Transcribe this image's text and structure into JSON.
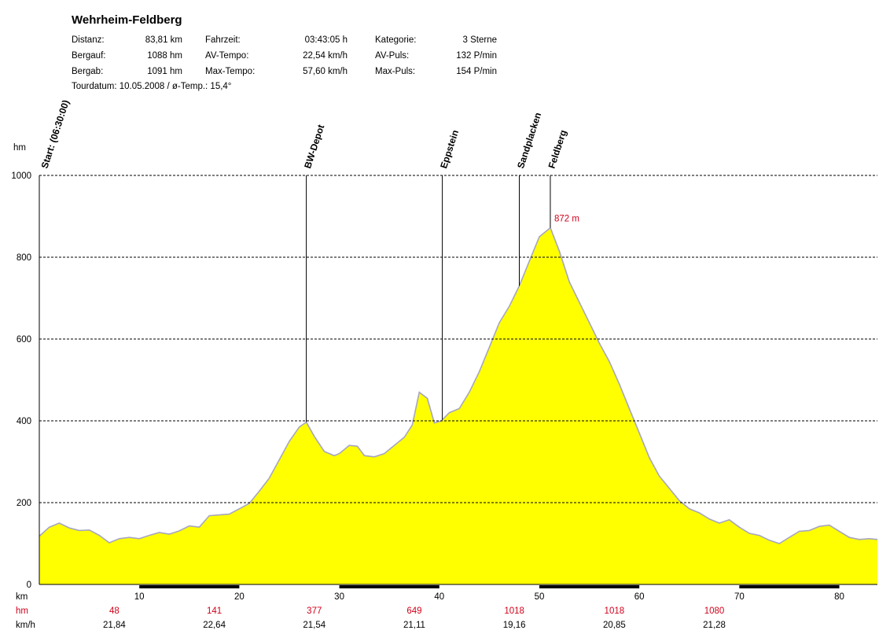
{
  "title": "Wehrheim-Feldberg",
  "stats": {
    "distanz_label": "Distanz:",
    "distanz_value": "83,81 km",
    "bergauf_label": "Bergauf:",
    "bergauf_value": "1088 hm",
    "bergab_label": "Bergab:",
    "bergab_value": "1091 hm",
    "fahrzeit_label": "Fahrzeit:",
    "fahrzeit_value": "03:43:05 h",
    "avtempo_label": "AV-Tempo:",
    "avtempo_value": "22,54 km/h",
    "maxtempo_label": "Max-Tempo:",
    "maxtempo_value": "57,60 km/h",
    "kategorie_label": "Kategorie:",
    "kategorie_value": "3 Sterne",
    "avpuls_label": "AV-Puls:",
    "avpuls_value": "132 P/min",
    "maxpuls_label": "Max-Puls:",
    "maxpuls_value": "154 P/min"
  },
  "tour_line": "Tourdatum: 10.05.2008  /  ø-Temp.: 15,4°",
  "chart_data": {
    "type": "area",
    "ylabel": "hm",
    "xlabel": "km",
    "xlim": [
      0,
      83.81
    ],
    "ylim": [
      0,
      1000
    ],
    "y_ticks": [
      "0",
      "200",
      "400",
      "600",
      "800",
      "1000"
    ],
    "x_ticks": [
      "10",
      "20",
      "30",
      "40",
      "50",
      "60",
      "70",
      "80"
    ],
    "grid": "horizontal dashed",
    "fill_color": "#ffff00",
    "outline_color": "#a6a6c0",
    "accent_color": "#d0021b",
    "x": [
      0,
      1,
      2,
      3,
      4,
      5,
      6,
      7,
      8,
      9,
      10,
      11,
      12,
      13,
      14,
      15,
      16,
      17,
      18,
      19,
      20,
      21,
      22,
      23,
      24,
      25,
      26,
      26.7,
      27.5,
      28.5,
      29.5,
      30,
      31,
      31.8,
      32.5,
      33.5,
      34.5,
      35.5,
      36.5,
      37.3,
      38,
      38.8,
      39.5,
      40.2,
      41,
      42,
      43,
      44,
      45,
      46,
      47,
      48,
      49,
      50,
      51.1,
      52,
      53,
      54,
      55,
      56,
      57,
      58,
      59,
      60,
      61,
      62,
      63,
      64,
      65,
      66,
      67,
      68,
      69,
      70,
      71,
      72,
      73,
      74,
      75,
      76,
      77,
      78,
      79,
      80,
      81,
      82,
      83,
      83.81
    ],
    "y": [
      118,
      140,
      150,
      138,
      132,
      133,
      120,
      102,
      112,
      115,
      112,
      120,
      127,
      123,
      131,
      143,
      140,
      168,
      170,
      172,
      185,
      198,
      228,
      260,
      305,
      350,
      385,
      397,
      362,
      325,
      315,
      320,
      340,
      338,
      315,
      312,
      320,
      340,
      360,
      390,
      470,
      455,
      395,
      400,
      420,
      430,
      470,
      520,
      580,
      640,
      680,
      730,
      790,
      850,
      872,
      815,
      740,
      690,
      640,
      590,
      545,
      490,
      430,
      370,
      310,
      265,
      235,
      205,
      185,
      175,
      160,
      150,
      158,
      140,
      125,
      120,
      108,
      100,
      115,
      130,
      132,
      142,
      145,
      130,
      115,
      110,
      112,
      110
    ],
    "markers": [
      {
        "label": "Start: (06:30:00)",
        "km": 0
      },
      {
        "label": "BW-Depot",
        "km": 26.7
      },
      {
        "label": "Eppstein",
        "km": 40.3
      },
      {
        "label": "Sandplacken",
        "km": 48.0
      },
      {
        "label": "Feldberg",
        "km": 51.1
      }
    ],
    "peak_annotation": "872 m",
    "bottom_table": {
      "row_labels": [
        "km",
        "hm",
        "km/h"
      ],
      "hm": [
        "48",
        "141",
        "377",
        "649",
        "1018",
        "1018",
        "1080"
      ],
      "kmh": [
        "21,84",
        "22,64",
        "21,54",
        "21,11",
        "19,16",
        "20,85",
        "21,28"
      ]
    }
  }
}
